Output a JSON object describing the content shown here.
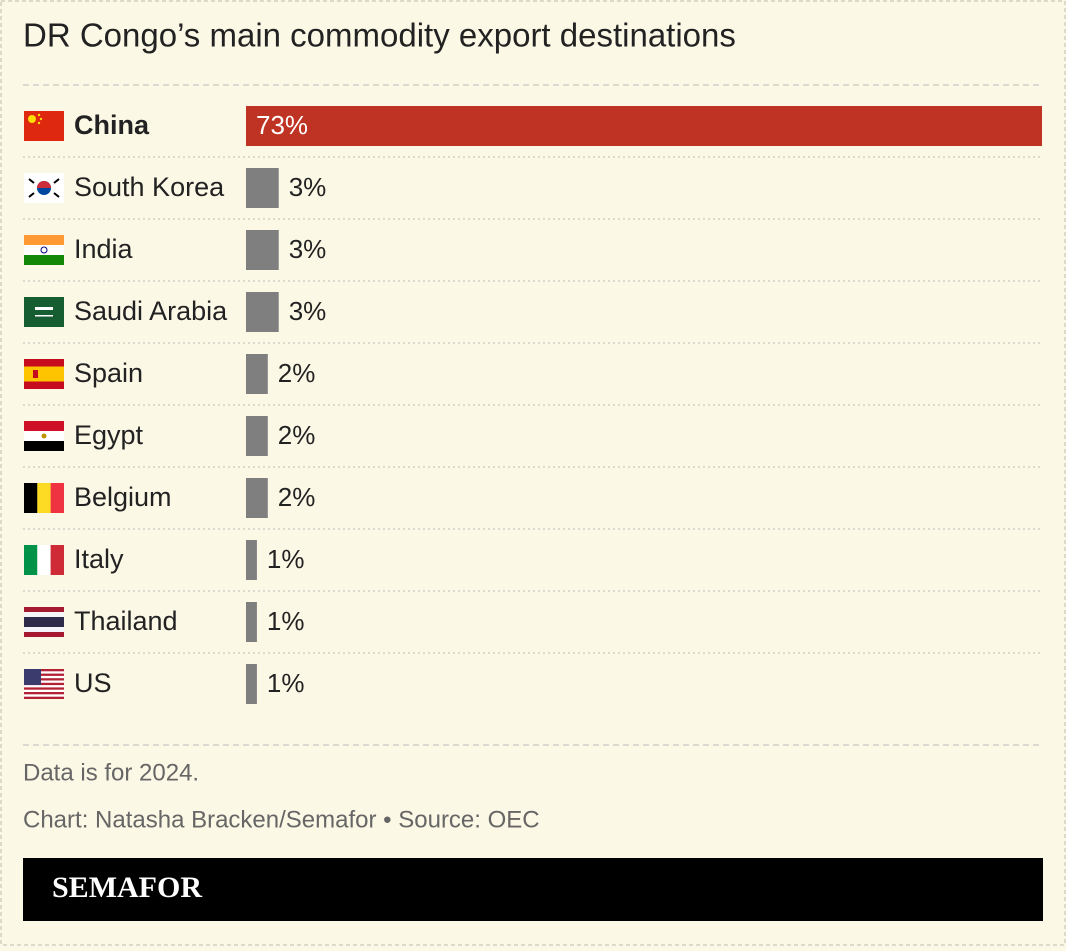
{
  "chart_data": {
    "type": "bar",
    "orientation": "horizontal",
    "title": "DR Congo’s main commodity export destinations",
    "categories": [
      "China",
      "South Korea",
      "India",
      "Saudi Arabia",
      "Spain",
      "Egypt",
      "Belgium",
      "Italy",
      "Thailand",
      "US"
    ],
    "values": [
      73,
      3,
      3,
      3,
      2,
      2,
      2,
      1,
      1,
      1
    ],
    "value_labels": [
      "73%",
      "3%",
      "3%",
      "3%",
      "2%",
      "2%",
      "2%",
      "1%",
      "1%",
      "1%"
    ],
    "colors": [
      "#bf3324",
      "#7f7f7f",
      "#7f7f7f",
      "#7f7f7f",
      "#7f7f7f",
      "#7f7f7f",
      "#7f7f7f",
      "#7f7f7f",
      "#7f7f7f",
      "#7f7f7f"
    ],
    "note": "Data is for 2024.",
    "credit": "Chart: Natasha Bracken/Semafor • Source: OEC",
    "logo": "SEMAFOR"
  }
}
